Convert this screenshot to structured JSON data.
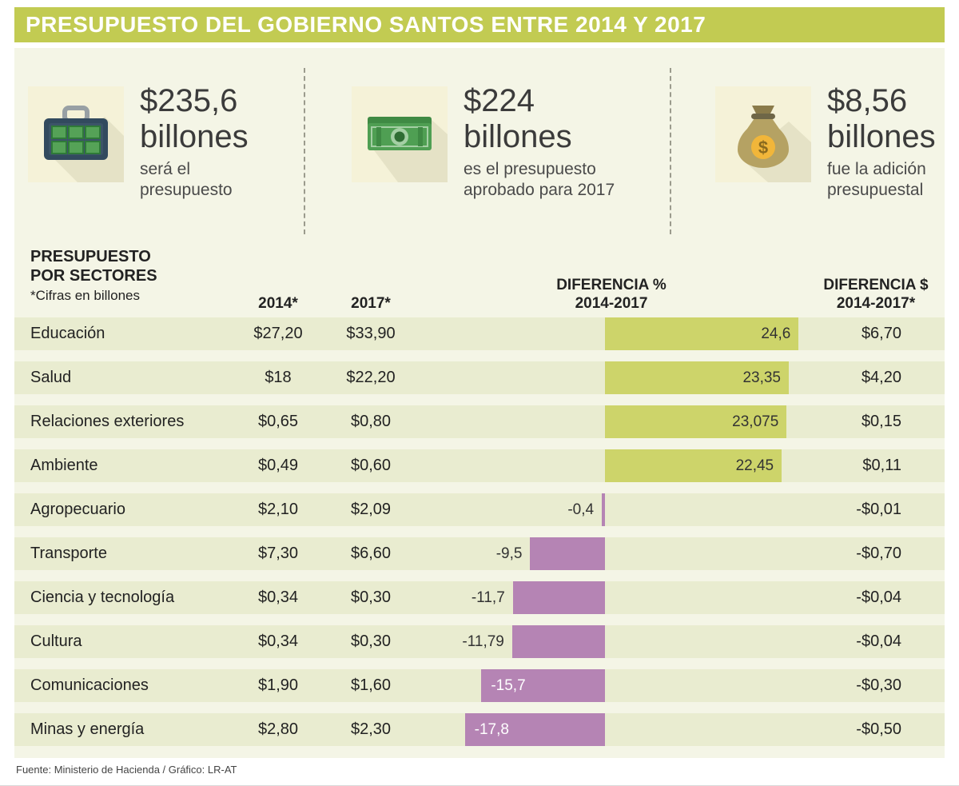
{
  "title": "PRESUPUESTO DEL GOBIERNO SANTOS ENTRE 2014 Y 2017",
  "stats": [
    {
      "icon": "briefcase-money-icon",
      "value": "$235,6",
      "unit": "billones",
      "caption1": "será el",
      "caption2": "presupuesto"
    },
    {
      "icon": "banknotes-icon",
      "value": "$224",
      "unit": "billones",
      "caption1": "es el presupuesto",
      "caption2": "aprobado para 2017"
    },
    {
      "icon": "money-bag-icon",
      "value": "$8,56",
      "unit": "billones",
      "caption1": "fue la adición",
      "caption2": "presupuestal"
    }
  ],
  "table": {
    "heading_line1": "PRESUPUESTO",
    "heading_line2": "POR SECTORES",
    "heading_note": "*Cifras en billones",
    "col_2014": "2014*",
    "col_2017": "2017*",
    "col_diff_pct_line1": "DIFERENCIA %",
    "col_diff_pct_line2": "2014-2017",
    "col_diff_abs_line1": "DIFERENCIA $",
    "col_diff_abs_line2": "2014-2017*",
    "rows": [
      {
        "sector": "Educación",
        "y2014": "$27,20",
        "y2017": "$33,90",
        "diff_pct": 24.6,
        "diff_pct_label": "24,6",
        "diff_abs": "$6,70"
      },
      {
        "sector": "Salud",
        "y2014": "$18",
        "y2017": "$22,20",
        "diff_pct": 23.35,
        "diff_pct_label": "23,35",
        "diff_abs": "$4,20"
      },
      {
        "sector": "Relaciones exteriores",
        "y2014": "$0,65",
        "y2017": "$0,80",
        "diff_pct": 23.075,
        "diff_pct_label": "23,075",
        "diff_abs": "$0,15"
      },
      {
        "sector": "Ambiente",
        "y2014": "$0,49",
        "y2017": "$0,60",
        "diff_pct": 22.45,
        "diff_pct_label": "22,45",
        "diff_abs": "$0,11"
      },
      {
        "sector": "Agropecuario",
        "y2014": "$2,10",
        "y2017": "$2,09",
        "diff_pct": -0.4,
        "diff_pct_label": "-0,4",
        "diff_abs": "-$0,01"
      },
      {
        "sector": "Transporte",
        "y2014": "$7,30",
        "y2017": "$6,60",
        "diff_pct": -9.5,
        "diff_pct_label": "-9,5",
        "diff_abs": "-$0,70"
      },
      {
        "sector": "Ciencia y tecnología",
        "y2014": "$0,34",
        "y2017": "$0,30",
        "diff_pct": -11.7,
        "diff_pct_label": "-11,7",
        "diff_abs": "-$0,04"
      },
      {
        "sector": "Cultura",
        "y2014": "$0,34",
        "y2017": "$0,30",
        "diff_pct": -11.79,
        "diff_pct_label": "-11,79",
        "diff_abs": "-$0,04"
      },
      {
        "sector": "Comunicaciones",
        "y2014": "$1,90",
        "y2017": "$1,60",
        "diff_pct": -15.7,
        "diff_pct_label": "-15,7",
        "diff_abs": "-$0,30"
      },
      {
        "sector": "Minas y energía",
        "y2014": "$2,80",
        "y2017": "$2,30",
        "diff_pct": -17.8,
        "diff_pct_label": "-17,8",
        "diff_abs": "-$0,50"
      }
    ]
  },
  "footer": {
    "source": "Fuente: Ministerio de Hacienda / Gráfico: LR-AT"
  },
  "colors": {
    "header_bar": "#c2cb52",
    "positive_bar": "#cdd46a",
    "negative_bar": "#b584b4",
    "row_band": "#e9ecd0",
    "background": "#f4f5e6",
    "icon_bg": "#f5f2d8"
  },
  "chart_data": {
    "type": "bar",
    "orientation": "horizontal",
    "title": "PRESUPUESTO DEL GOBIERNO SANTOS ENTRE 2014 Y 2017",
    "subtitle": "PRESUPUESTO POR SECTORES (*Cifras en billones)",
    "categories": [
      "Educación",
      "Salud",
      "Relaciones exteriores",
      "Ambiente",
      "Agropecuario",
      "Transporte",
      "Ciencia y tecnología",
      "Cultura",
      "Comunicaciones",
      "Minas y energía"
    ],
    "series": [
      {
        "name": "2014*",
        "values": [
          27.2,
          18,
          0.65,
          0.49,
          2.1,
          7.3,
          0.34,
          0.34,
          1.9,
          2.8
        ]
      },
      {
        "name": "2017*",
        "values": [
          33.9,
          22.2,
          0.8,
          0.6,
          2.09,
          6.6,
          0.3,
          0.3,
          1.6,
          2.3
        ]
      },
      {
        "name": "DIFERENCIA % 2014-2017",
        "values": [
          24.6,
          23.35,
          23.075,
          22.45,
          -0.4,
          -9.5,
          -11.7,
          -11.79,
          -15.7,
          -17.8
        ]
      },
      {
        "name": "DIFERENCIA $ 2014-2017*",
        "values": [
          6.7,
          4.2,
          0.15,
          0.11,
          -0.01,
          -0.7,
          -0.04,
          -0.04,
          -0.3,
          -0.5
        ]
      }
    ],
    "plotted_series": "DIFERENCIA % 2014-2017",
    "xlim": [
      -24,
      25.5
    ],
    "grid": false,
    "legend": "none",
    "highlights": [
      {
        "label": "será el presupuesto",
        "value": 235.6,
        "unit": "billones"
      },
      {
        "label": "es el presupuesto aprobado para 2017",
        "value": 224,
        "unit": "billones"
      },
      {
        "label": "fue la adición presupuestal",
        "value": 8.56,
        "unit": "billones"
      }
    ]
  }
}
